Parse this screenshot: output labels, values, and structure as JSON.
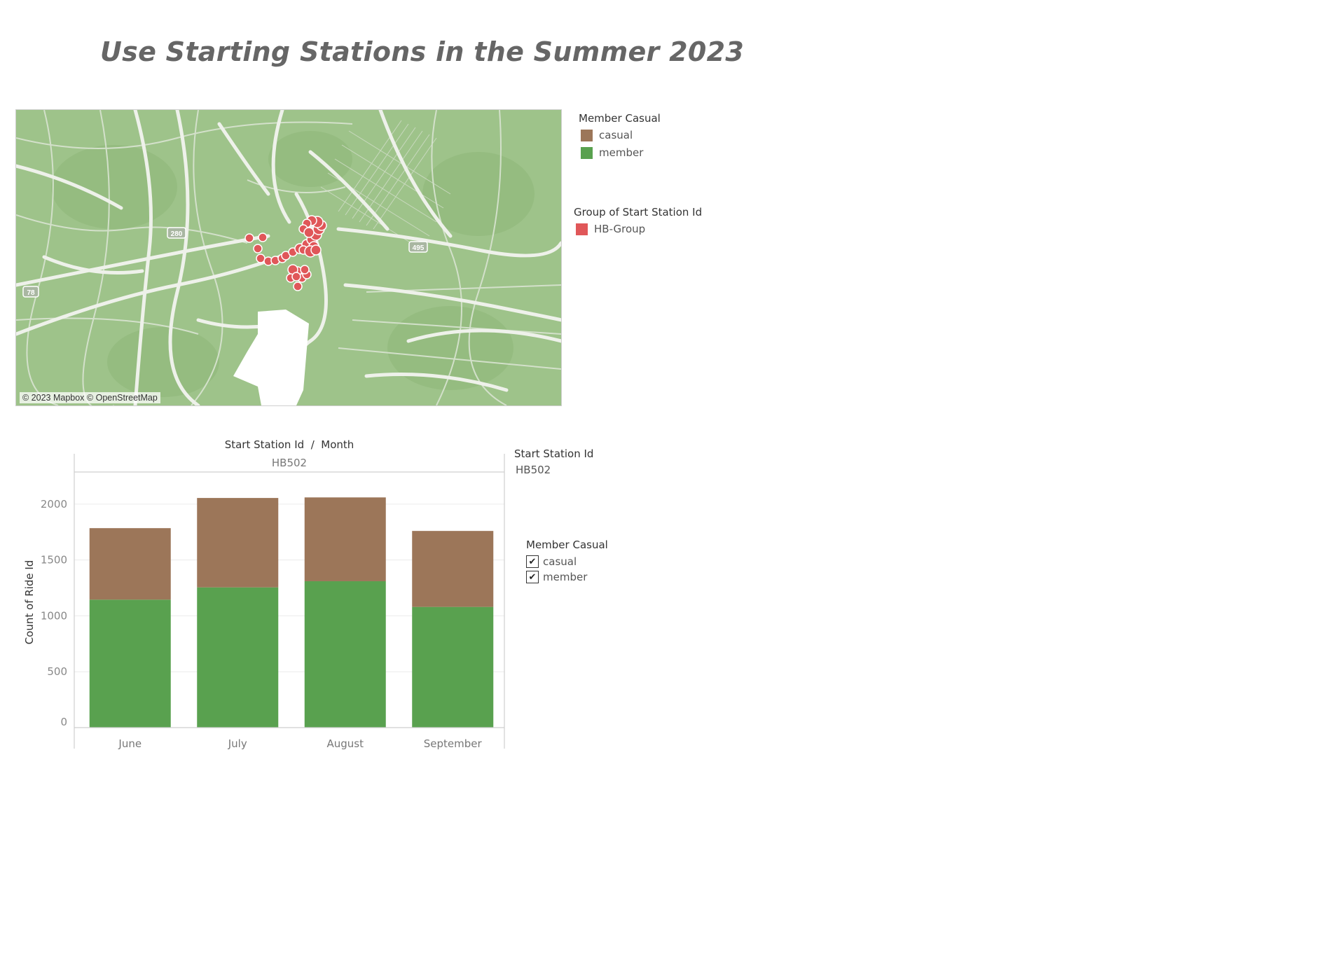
{
  "title": "Use Starting Stations in the Summer 2023",
  "map": {
    "attribution": "© 2023 Mapbox © OpenStreetMap",
    "shields": [
      "280",
      "495",
      "78"
    ],
    "colors": {
      "land": "#9ec38a",
      "road": "#e9ece6",
      "station": "#e05759"
    }
  },
  "legends": {
    "member_casual": {
      "title": "Member Casual",
      "items": [
        {
          "label": "casual",
          "color": "#9c7659"
        },
        {
          "label": "member",
          "color": "#59a14f"
        }
      ]
    },
    "group": {
      "title": "Group of Start Station Id",
      "items": [
        {
          "label": "HB-Group",
          "color": "#e05759"
        }
      ]
    }
  },
  "filters": {
    "start_station": {
      "title": "Start Station Id",
      "value": "HB502"
    },
    "member_casual": {
      "title": "Member Casual",
      "options": [
        {
          "label": "casual",
          "checked": true
        },
        {
          "label": "member",
          "checked": true
        }
      ]
    }
  },
  "chart_data": {
    "type": "bar",
    "stacked": true,
    "header": "Start Station Id  /  Month",
    "panel_label": "HB502",
    "categories": [
      "June",
      "July",
      "August",
      "September"
    ],
    "series": [
      {
        "name": "member",
        "color": "#59a14f",
        "values": [
          1145,
          1255,
          1310,
          1080
        ]
      },
      {
        "name": "casual",
        "color": "#9c7659",
        "values": [
          640,
          800,
          750,
          680
        ]
      }
    ],
    "ylabel": "Count of Ride Id",
    "ylim": [
      0,
      2300
    ],
    "yticks": [
      0,
      500,
      1000,
      1500,
      2000
    ],
    "grid": true
  }
}
